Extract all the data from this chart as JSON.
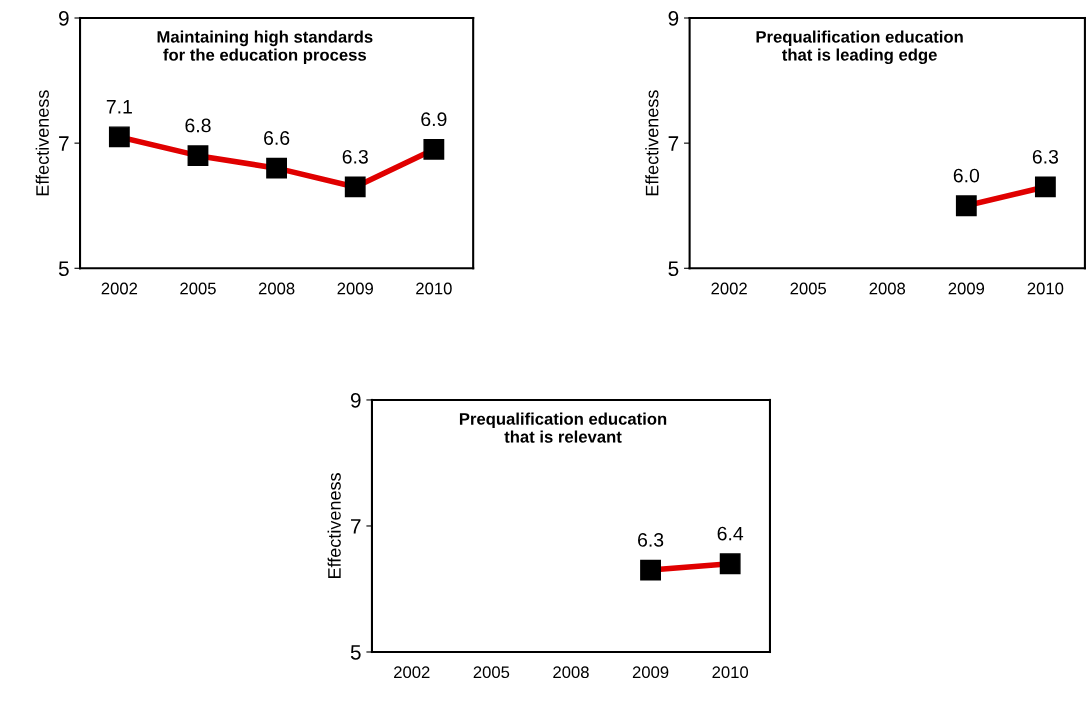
{
  "chart_data": [
    {
      "type": "line",
      "title": "Maintaining high standards\nfor the education process",
      "ylabel": "Effectiveness",
      "categories": [
        "2002",
        "2005",
        "2008",
        "2009",
        "2010"
      ],
      "series": [
        {
          "color": "#e00000",
          "values": [
            7.1,
            6.8,
            6.6,
            6.3,
            6.9
          ],
          "value_labels": [
            "7.1",
            "6.8",
            "6.6",
            "6.3",
            "6.9"
          ]
        }
      ],
      "ylim": [
        5,
        9
      ],
      "yticks": [
        5,
        7,
        9
      ],
      "marker": "square",
      "grid": false,
      "legend": false
    },
    {
      "type": "line",
      "title": "Prequalification education\nthat is leading edge",
      "ylabel": "Effectiveness",
      "categories": [
        "2002",
        "2005",
        "2008",
        "2009",
        "2010"
      ],
      "series": [
        {
          "color": "#e00000",
          "values": [
            null,
            null,
            null,
            6.0,
            6.3
          ],
          "value_labels": [
            null,
            null,
            null,
            "6.0",
            "6.3"
          ]
        }
      ],
      "ylim": [
        5,
        9
      ],
      "yticks": [
        5,
        7,
        9
      ],
      "marker": "square",
      "grid": false,
      "legend": false
    },
    {
      "type": "line",
      "title": "Prequalification education\nthat is relevant",
      "ylabel": "Effectiveness",
      "categories": [
        "2002",
        "2005",
        "2008",
        "2009",
        "2010"
      ],
      "series": [
        {
          "color": "#e00000",
          "values": [
            null,
            null,
            null,
            6.3,
            6.4
          ],
          "value_labels": [
            null,
            null,
            null,
            "6.3",
            "6.4"
          ]
        }
      ],
      "ylim": [
        5,
        9
      ],
      "yticks": [
        5,
        7,
        9
      ],
      "marker": "square",
      "grid": false,
      "legend": false
    }
  ]
}
